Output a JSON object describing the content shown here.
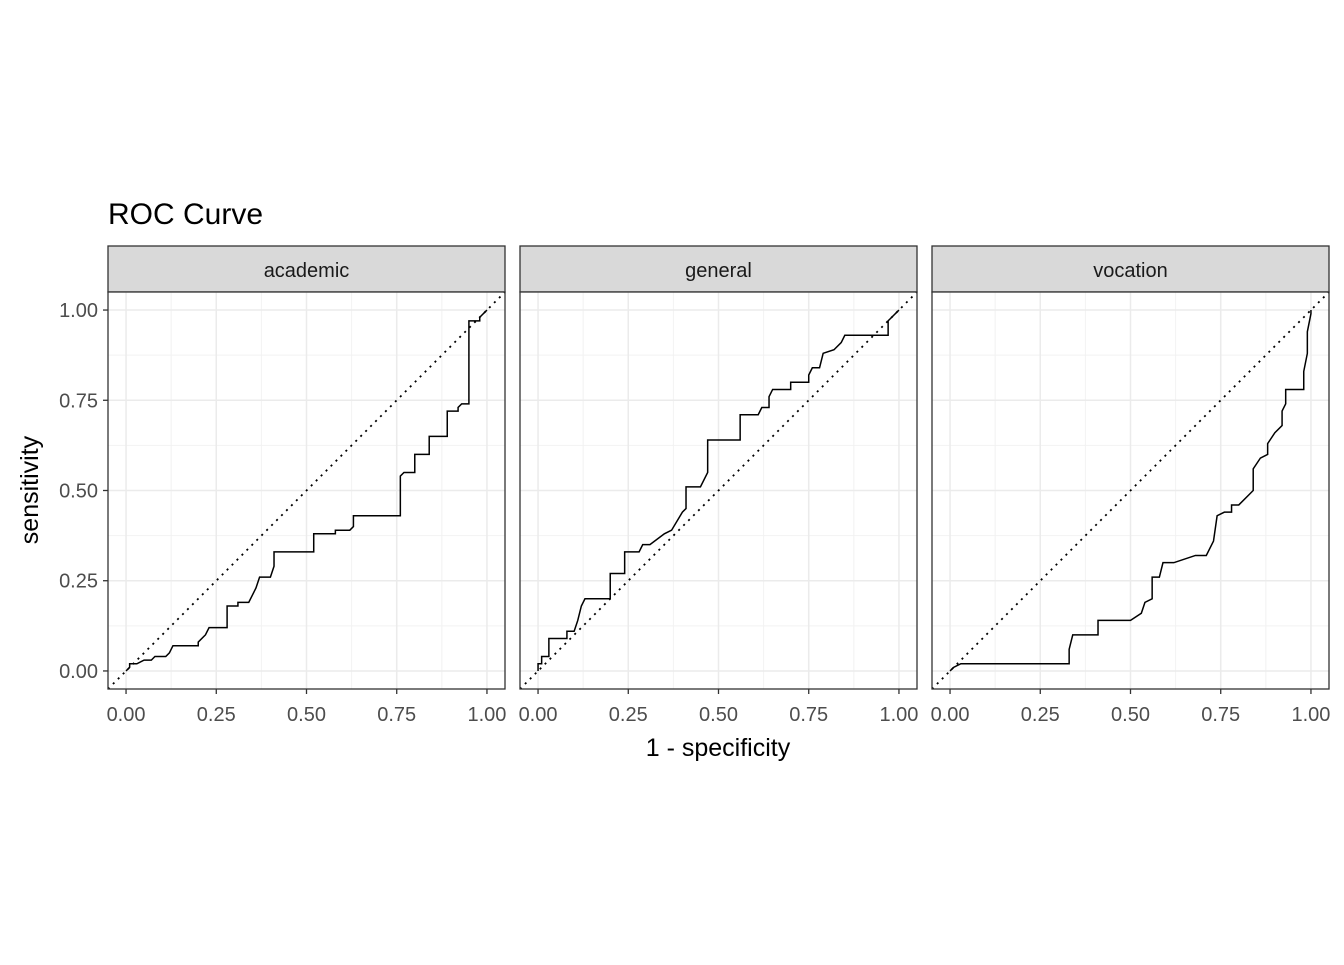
{
  "chart_data": {
    "type": "line",
    "title": "ROC Curve",
    "xlabel": "1 - specificity",
    "ylabel": "sensitivity",
    "xlim": [
      -0.05,
      1.05
    ],
    "ylim": [
      -0.05,
      1.05
    ],
    "ticks": [
      0,
      0.25,
      0.5,
      0.75,
      1
    ],
    "tick_labels": [
      "0.00",
      "0.25",
      "0.50",
      "0.75",
      "1.00"
    ],
    "grid": true,
    "reference_line": "diagonal-dotted",
    "panels": [
      {
        "label": "academic",
        "points": [
          [
            0,
            0
          ],
          [
            0.01,
            0.01
          ],
          [
            0.01,
            0.02
          ],
          [
            0.03,
            0.02
          ],
          [
            0.05,
            0.03
          ],
          [
            0.07,
            0.03
          ],
          [
            0.08,
            0.04
          ],
          [
            0.11,
            0.04
          ],
          [
            0.12,
            0.05
          ],
          [
            0.13,
            0.07
          ],
          [
            0.2,
            0.07
          ],
          [
            0.2,
            0.08
          ],
          [
            0.22,
            0.1
          ],
          [
            0.23,
            0.12
          ],
          [
            0.28,
            0.12
          ],
          [
            0.28,
            0.18
          ],
          [
            0.31,
            0.18
          ],
          [
            0.31,
            0.19
          ],
          [
            0.34,
            0.19
          ],
          [
            0.35,
            0.21
          ],
          [
            0.36,
            0.23
          ],
          [
            0.37,
            0.26
          ],
          [
            0.4,
            0.26
          ],
          [
            0.41,
            0.29
          ],
          [
            0.41,
            0.33
          ],
          [
            0.52,
            0.33
          ],
          [
            0.52,
            0.38
          ],
          [
            0.58,
            0.38
          ],
          [
            0.58,
            0.39
          ],
          [
            0.62,
            0.39
          ],
          [
            0.63,
            0.4
          ],
          [
            0.63,
            0.43
          ],
          [
            0.76,
            0.43
          ],
          [
            0.76,
            0.54
          ],
          [
            0.77,
            0.55
          ],
          [
            0.8,
            0.55
          ],
          [
            0.8,
            0.6
          ],
          [
            0.84,
            0.6
          ],
          [
            0.84,
            0.65
          ],
          [
            0.89,
            0.65
          ],
          [
            0.89,
            0.72
          ],
          [
            0.92,
            0.72
          ],
          [
            0.92,
            0.73
          ],
          [
            0.93,
            0.74
          ],
          [
            0.95,
            0.74
          ],
          [
            0.95,
            0.97
          ],
          [
            0.98,
            0.97
          ],
          [
            0.98,
            0.98
          ],
          [
            1,
            1
          ]
        ]
      },
      {
        "label": "general",
        "points": [
          [
            0,
            0
          ],
          [
            0,
            0.02
          ],
          [
            0.01,
            0.02
          ],
          [
            0.01,
            0.04
          ],
          [
            0.03,
            0.04
          ],
          [
            0.03,
            0.09
          ],
          [
            0.08,
            0.09
          ],
          [
            0.08,
            0.11
          ],
          [
            0.1,
            0.11
          ],
          [
            0.11,
            0.14
          ],
          [
            0.12,
            0.18
          ],
          [
            0.13,
            0.2
          ],
          [
            0.2,
            0.2
          ],
          [
            0.2,
            0.27
          ],
          [
            0.24,
            0.27
          ],
          [
            0.24,
            0.33
          ],
          [
            0.28,
            0.33
          ],
          [
            0.29,
            0.35
          ],
          [
            0.31,
            0.35
          ],
          [
            0.35,
            0.38
          ],
          [
            0.37,
            0.39
          ],
          [
            0.4,
            0.44
          ],
          [
            0.41,
            0.45
          ],
          [
            0.41,
            0.51
          ],
          [
            0.45,
            0.51
          ],
          [
            0.47,
            0.55
          ],
          [
            0.47,
            0.64
          ],
          [
            0.56,
            0.64
          ],
          [
            0.56,
            0.71
          ],
          [
            0.61,
            0.71
          ],
          [
            0.62,
            0.73
          ],
          [
            0.64,
            0.73
          ],
          [
            0.64,
            0.76
          ],
          [
            0.65,
            0.78
          ],
          [
            0.7,
            0.78
          ],
          [
            0.7,
            0.8
          ],
          [
            0.75,
            0.8
          ],
          [
            0.75,
            0.82
          ],
          [
            0.76,
            0.84
          ],
          [
            0.78,
            0.84
          ],
          [
            0.79,
            0.88
          ],
          [
            0.82,
            0.89
          ],
          [
            0.84,
            0.91
          ],
          [
            0.85,
            0.93
          ],
          [
            0.97,
            0.93
          ],
          [
            0.97,
            0.97
          ],
          [
            0.98,
            0.98
          ],
          [
            1,
            1
          ]
        ]
      },
      {
        "label": "vocation",
        "points": [
          [
            0,
            0
          ],
          [
            0.01,
            0.01
          ],
          [
            0.03,
            0.02
          ],
          [
            0.33,
            0.02
          ],
          [
            0.33,
            0.06
          ],
          [
            0.34,
            0.1
          ],
          [
            0.41,
            0.1
          ],
          [
            0.41,
            0.14
          ],
          [
            0.5,
            0.14
          ],
          [
            0.53,
            0.16
          ],
          [
            0.54,
            0.19
          ],
          [
            0.56,
            0.2
          ],
          [
            0.56,
            0.26
          ],
          [
            0.58,
            0.26
          ],
          [
            0.59,
            0.3
          ],
          [
            0.62,
            0.3
          ],
          [
            0.68,
            0.32
          ],
          [
            0.71,
            0.32
          ],
          [
            0.73,
            0.36
          ],
          [
            0.74,
            0.43
          ],
          [
            0.76,
            0.44
          ],
          [
            0.78,
            0.44
          ],
          [
            0.78,
            0.46
          ],
          [
            0.8,
            0.46
          ],
          [
            0.83,
            0.49
          ],
          [
            0.84,
            0.5
          ],
          [
            0.84,
            0.56
          ],
          [
            0.86,
            0.59
          ],
          [
            0.88,
            0.6
          ],
          [
            0.88,
            0.63
          ],
          [
            0.9,
            0.66
          ],
          [
            0.92,
            0.68
          ],
          [
            0.92,
            0.72
          ],
          [
            0.93,
            0.74
          ],
          [
            0.93,
            0.78
          ],
          [
            0.98,
            0.78
          ],
          [
            0.98,
            0.83
          ],
          [
            0.99,
            0.88
          ],
          [
            0.99,
            0.94
          ],
          [
            1,
            0.99
          ],
          [
            1,
            1
          ]
        ]
      }
    ]
  }
}
